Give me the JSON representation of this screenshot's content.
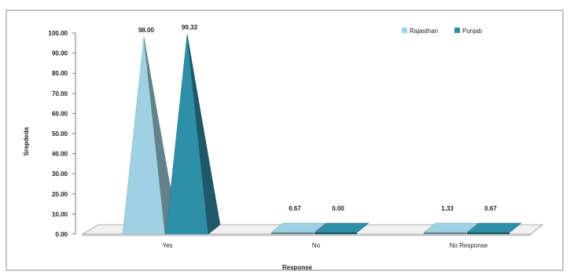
{
  "chart_data": {
    "type": "bar",
    "categories": [
      "Yes",
      "No",
      "No Response"
    ],
    "series": [
      {
        "name": "Rajasthan",
        "values": [
          98.0,
          0.67,
          1.33
        ],
        "color": "#9fd1e2",
        "labels": [
          "98.00",
          "0.67",
          "1.33"
        ]
      },
      {
        "name": "Punjab",
        "values": [
          99.33,
          0.0,
          0.67
        ],
        "color": "#2f8fa7",
        "labels": [
          "99.33",
          "0.00",
          "0.67"
        ]
      }
    ],
    "y_ticks": [
      "0.00",
      "10.00",
      "20.00",
      "30.00",
      "40.00",
      "50.00",
      "60.00",
      "70.00",
      "80.00",
      "90.00",
      "100.00"
    ],
    "xlabel": "Response",
    "ylabel": "Srepdeda",
    "ylim": [
      0,
      100
    ],
    "grid": false,
    "legend_position": "top-right"
  }
}
